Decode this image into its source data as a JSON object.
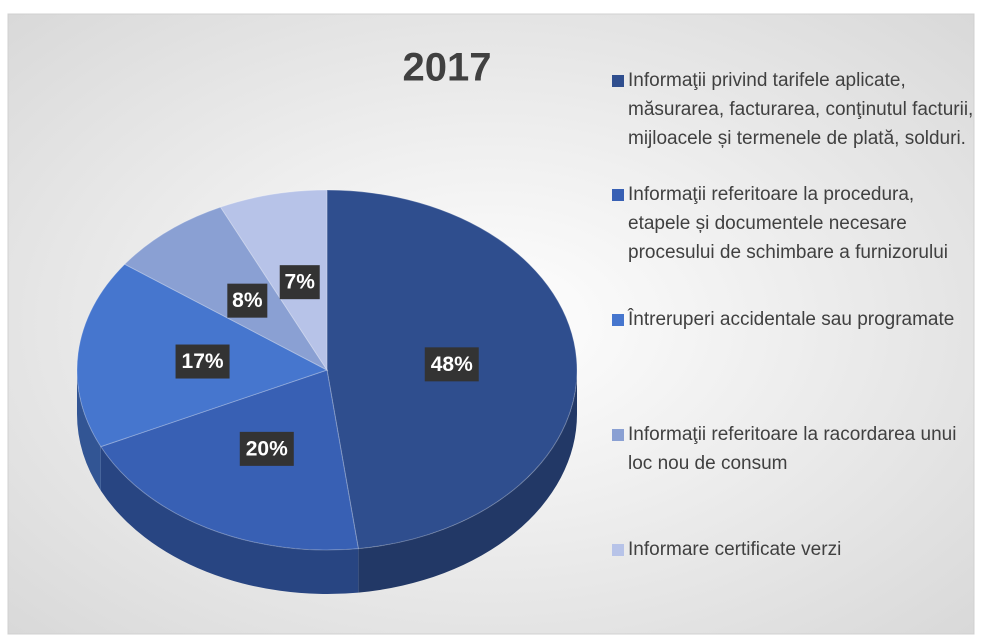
{
  "chart_data": {
    "type": "pie",
    "title": "2017",
    "categories": [
      "Informaţii privind tarifele aplicate, măsurarea, facturarea, conţinutul facturii, mijloacele și termenele de plată, solduri.",
      "Informaţii referitoare la procedura, etapele și documentele necesare procesului de schimbare a furnizorului",
      "Întreruperi accidentale sau programate",
      "Informaţii referitoare la racordarea unui loc nou de consum",
      "Informare certificate verzi"
    ],
    "values": [
      48,
      20,
      17,
      8,
      7
    ],
    "value_labels": [
      "48%",
      "20%",
      "17%",
      "8%",
      "7%"
    ],
    "colors": [
      "#2f4e8e",
      "#3860b4",
      "#4676ce",
      "#8aa0d3",
      "#b7c3e8"
    ]
  }
}
